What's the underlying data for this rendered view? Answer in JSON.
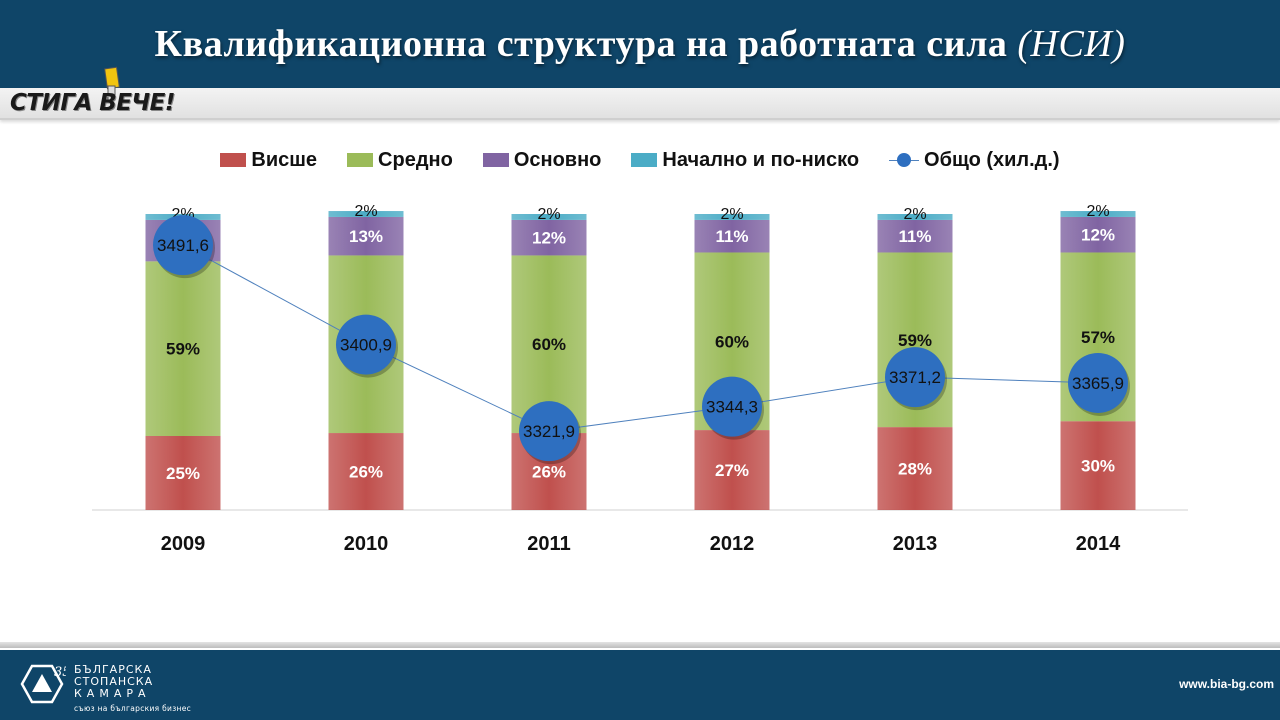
{
  "header": {
    "title": "Квалификационна структура на работната сила",
    "title_suffix": "(НСИ)"
  },
  "logo": {
    "text": "СТИГА ВЕЧЕ!"
  },
  "legend": {
    "items": [
      {
        "label": "Висше",
        "color": "#c0504d"
      },
      {
        "label": "Средно",
        "color": "#9bbb59"
      },
      {
        "label": "Основно",
        "color": "#8064a2"
      },
      {
        "label": "Начално и по-ниско",
        "color": "#4bacc6"
      },
      {
        "label": "Общо (хил.д.)",
        "color": "#2e6fc0"
      }
    ]
  },
  "chart_data": {
    "type": "bar",
    "stacked": true,
    "categories": [
      "2009",
      "2010",
      "2011",
      "2012",
      "2013",
      "2014"
    ],
    "series": [
      {
        "name": "Висше",
        "color": "#c0504d",
        "values": [
          25,
          26,
          26,
          27,
          28,
          30
        ],
        "labels": [
          "25%",
          "26%",
          "26%",
          "27%",
          "28%",
          "30%"
        ]
      },
      {
        "name": "Средно",
        "color": "#9bbb59",
        "values": [
          59,
          60,
          60,
          60,
          59,
          57
        ],
        "labels": [
          "59%",
          "60%",
          "60%",
          "60%",
          "59%",
          "57%"
        ]
      },
      {
        "name": "Основно",
        "color": "#8064a2",
        "values": [
          14,
          13,
          12,
          11,
          11,
          12
        ],
        "labels": [
          "14%",
          "13%",
          "12%",
          "11%",
          "11%",
          "12%"
        ]
      },
      {
        "name": "Начално и по-ниско",
        "color": "#4bacc6",
        "values": [
          2,
          2,
          2,
          2,
          2,
          2
        ],
        "labels": [
          "2%",
          "2%",
          "2%",
          "2%",
          "2%",
          "2%"
        ]
      }
    ],
    "line": {
      "name": "Общо (хил.д.)",
      "color": "#2e6fc0",
      "values": [
        3491.6,
        3400.9,
        3321.9,
        3344.3,
        3371.2,
        3365.9
      ],
      "labels": [
        "3491,6",
        "3400,9",
        "3321,9",
        "3344,3",
        "3371,2",
        "3365,9"
      ]
    },
    "ylim": [
      0,
      100
    ],
    "y2lim": [
      3250,
      3520
    ],
    "grid": false,
    "legend_position": "top"
  },
  "footer": {
    "org_line1": "БЪЛГАРСКА",
    "org_line2": "СТОПАНСКА",
    "org_line3": "КАМАРА",
    "org_tagline": "съюз на българския бизнес",
    "anniversary": "35",
    "url": "www.bia-bg.com"
  }
}
